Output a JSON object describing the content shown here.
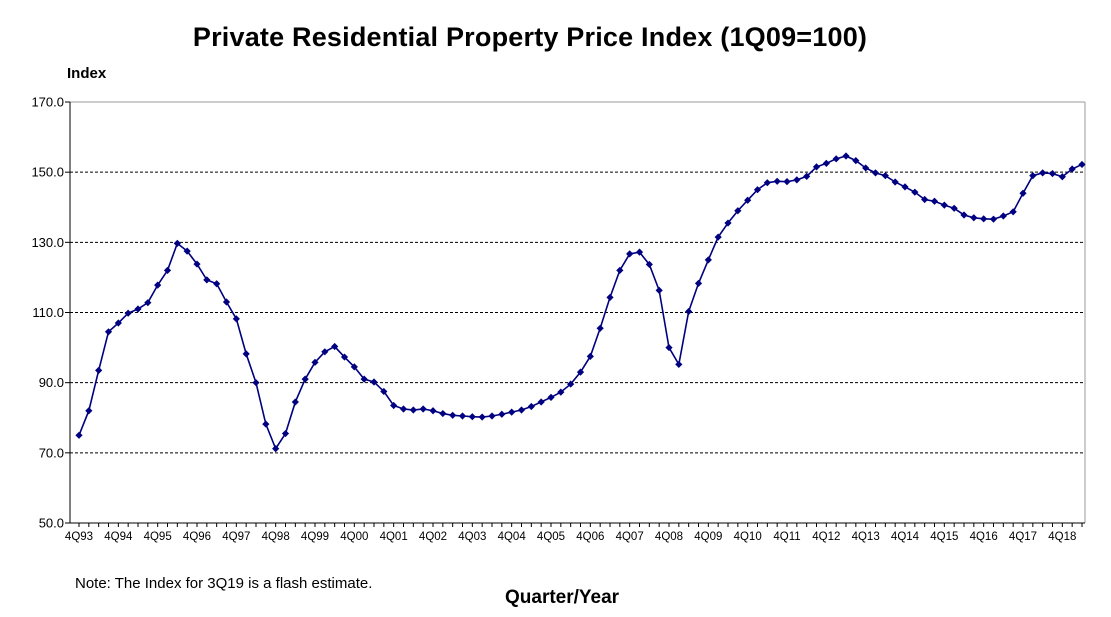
{
  "chart_data": {
    "type": "line",
    "title": "Private Residential Property Price Index (1Q09=100)",
    "ylabel": "Index",
    "xlabel": "Quarter/Year",
    "note": "Note: The Index for 3Q19 is a flash estimate.",
    "ylim": [
      50,
      170
    ],
    "yticks": [
      "50.0",
      "70.0",
      "90.0",
      "110.0",
      "130.0",
      "150.0",
      "170.0"
    ],
    "xtick_labels": [
      "4Q93",
      "4Q94",
      "4Q95",
      "4Q96",
      "4Q97",
      "4Q98",
      "4Q99",
      "4Q00",
      "4Q01",
      "4Q02",
      "4Q03",
      "4Q04",
      "4Q05",
      "4Q06",
      "4Q07",
      "4Q08",
      "4Q09",
      "4Q10",
      "4Q11",
      "4Q12",
      "4Q13",
      "4Q14",
      "4Q15",
      "4Q16",
      "4Q17",
      "4Q18"
    ],
    "grid": "horizontal-dashed",
    "series": [
      {
        "color": "#000080",
        "marker": "diamond",
        "start_period": "4Q93",
        "end_period": "3Q19",
        "values": [
          75.0,
          82.0,
          93.5,
          104.5,
          107.0,
          109.8,
          111.0,
          112.8,
          117.8,
          122.0,
          129.7,
          127.5,
          123.8,
          119.3,
          118.2,
          113.0,
          108.2,
          98.2,
          90.0,
          78.2,
          71.2,
          75.5,
          84.5,
          91.0,
          95.8,
          98.8,
          100.3,
          97.3,
          94.5,
          91.0,
          90.2,
          87.5,
          83.5,
          82.5,
          82.2,
          82.5,
          82.0,
          81.2,
          80.7,
          80.5,
          80.3,
          80.2,
          80.5,
          81.0,
          81.6,
          82.2,
          83.2,
          84.5,
          85.8,
          87.3,
          89.6,
          93.0,
          97.5,
          105.5,
          114.3,
          122.0,
          126.7,
          127.2,
          123.7,
          116.3,
          100.0,
          95.2,
          110.3,
          118.3,
          125.0,
          131.5,
          135.5,
          139.0,
          142.0,
          145.0,
          147.0,
          147.4,
          147.3,
          147.8,
          148.8,
          151.5,
          152.5,
          153.8,
          154.6,
          153.3,
          151.2,
          149.8,
          149.0,
          147.2,
          145.8,
          144.3,
          142.2,
          141.7,
          140.6,
          139.7,
          137.8,
          137.0,
          136.7,
          136.6,
          137.5,
          138.7,
          144.0,
          149.0,
          149.8,
          149.6,
          148.7,
          150.9,
          152.2
        ]
      }
    ]
  }
}
